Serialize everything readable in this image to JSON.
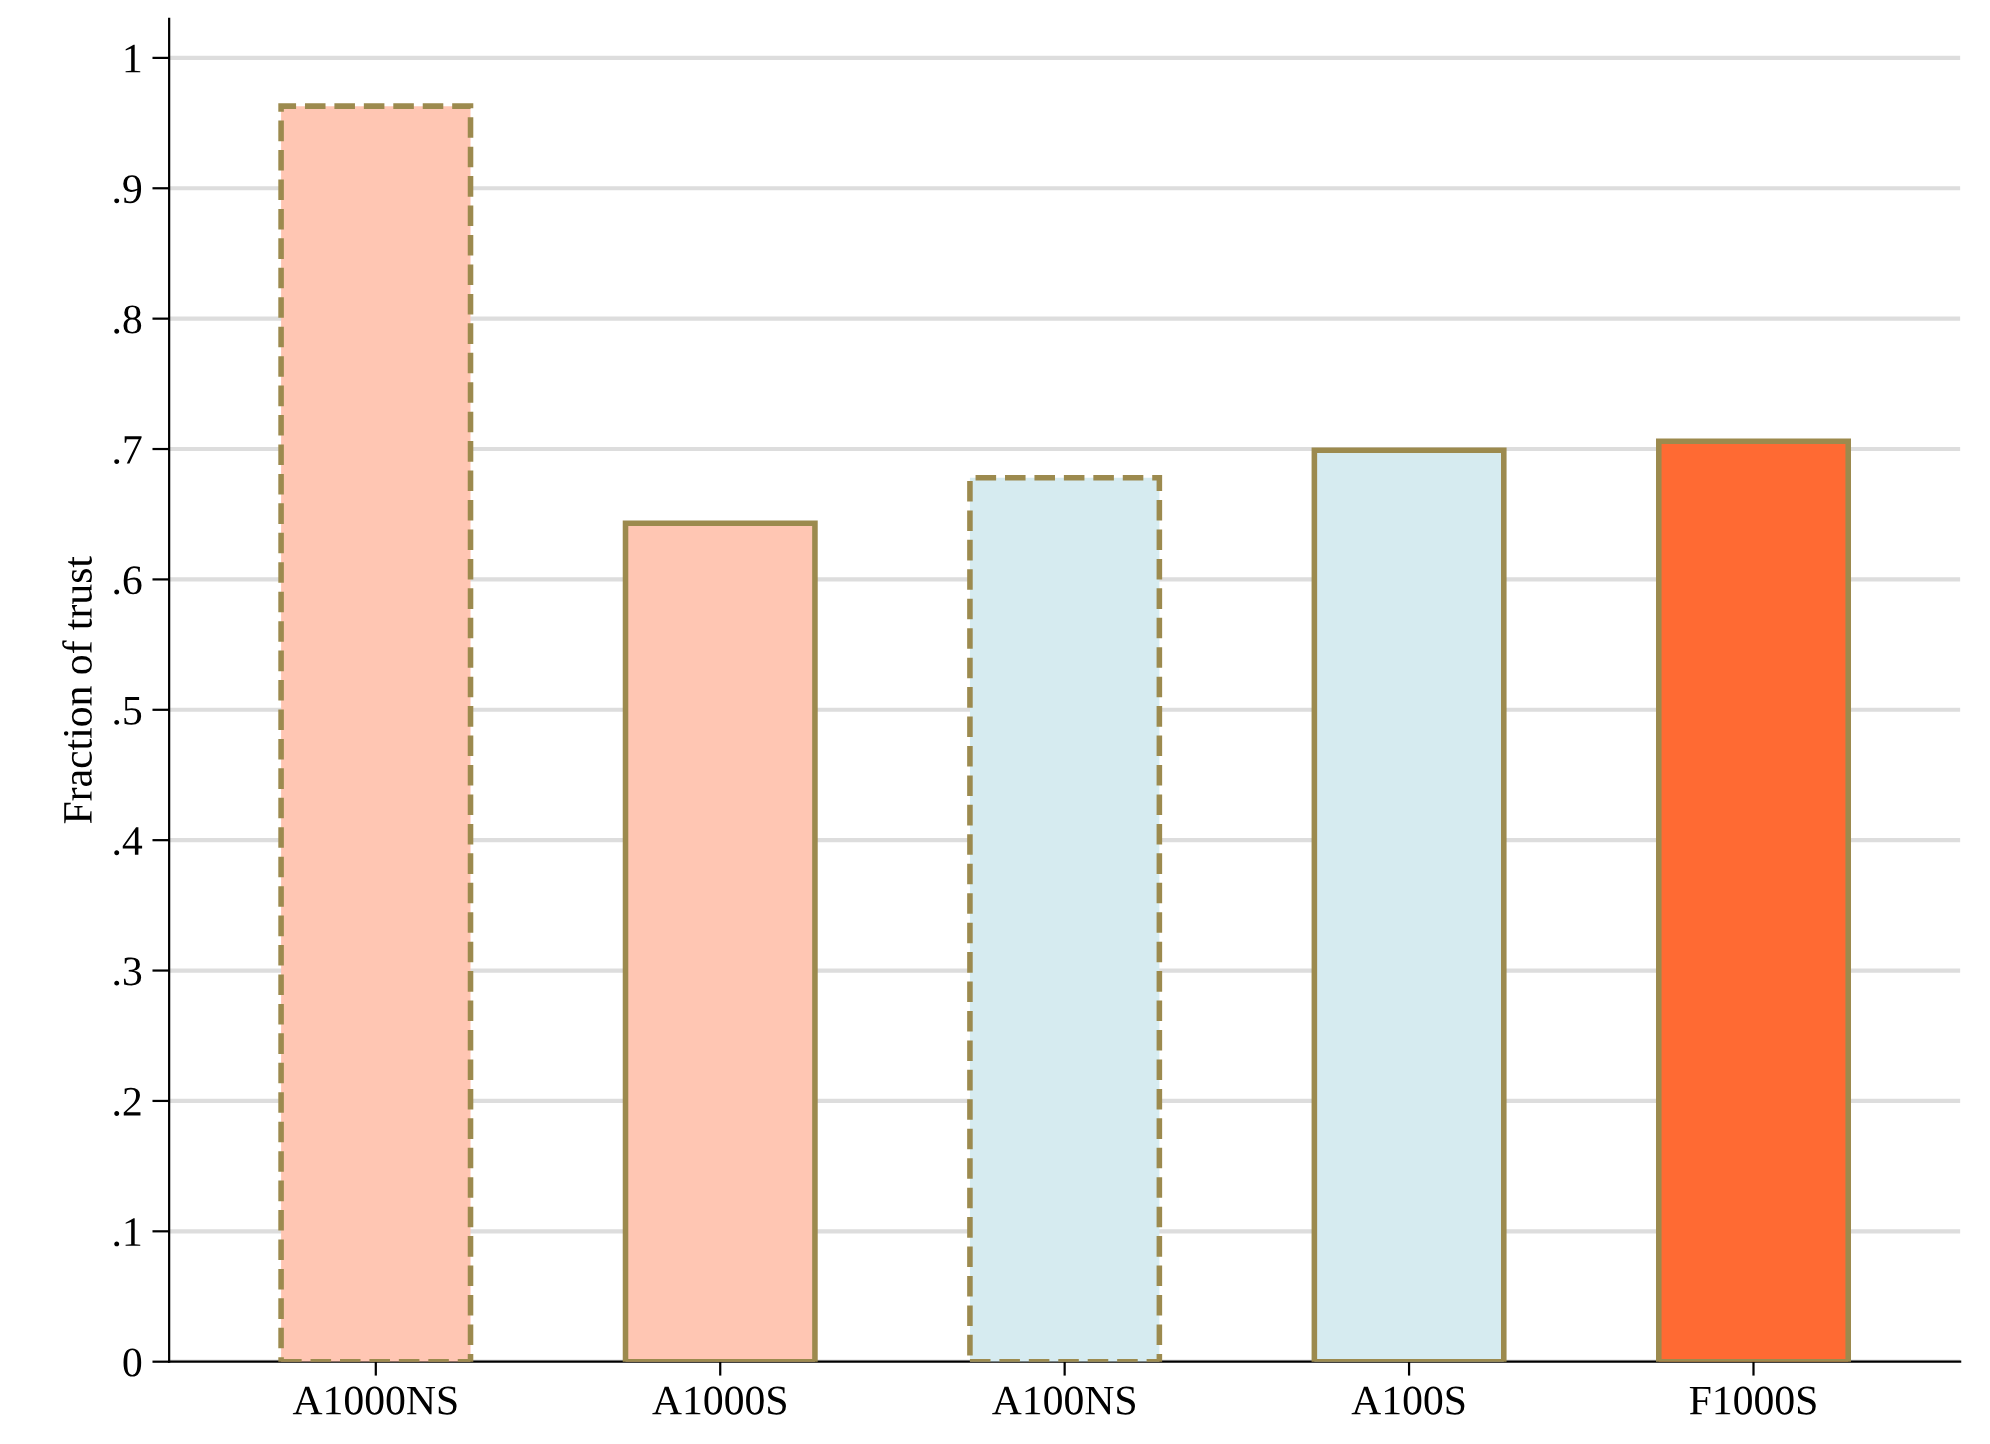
{
  "chart_data": {
    "type": "bar",
    "ylabel": "Fraction of trust",
    "categories": [
      "A1000NS",
      "A1000S",
      "A100NS",
      "A100S",
      "F1000S"
    ],
    "series": [
      {
        "color": "#ffc6b3",
        "line_style": "dashed",
        "values": [
          0.963,
          null,
          null,
          null,
          null
        ]
      },
      {
        "color": "#ffc6b3",
        "line_style": "solid",
        "values": [
          null,
          0.643,
          null,
          null,
          null
        ]
      },
      {
        "color": "#d6ebf0",
        "line_style": "dashed",
        "values": [
          null,
          null,
          0.678,
          null,
          null
        ]
      },
      {
        "color": "#d6ebf0",
        "line_style": "solid",
        "values": [
          null,
          null,
          null,
          0.699,
          null
        ]
      },
      {
        "color": "#ff6a33",
        "line_style": "solid",
        "values": [
          null,
          null,
          null,
          null,
          0.706
        ]
      }
    ],
    "ylim": [
      0,
      1.03
    ],
    "yticks": [
      0,
      {
        "value": 0.1,
        "label": ".1"
      },
      {
        "value": 0.2,
        "label": ".2"
      },
      {
        "value": 0.3,
        "label": ".3"
      },
      {
        "value": 0.4,
        "label": ".4"
      },
      {
        "value": 0.5,
        "label": ".5"
      },
      {
        "value": 0.6,
        "label": ".6"
      },
      {
        "value": 0.7,
        "label": ".7"
      },
      {
        "value": 0.8,
        "label": ".8"
      },
      {
        "value": 0.9,
        "label": ".9"
      },
      1
    ],
    "grid": "y"
  }
}
